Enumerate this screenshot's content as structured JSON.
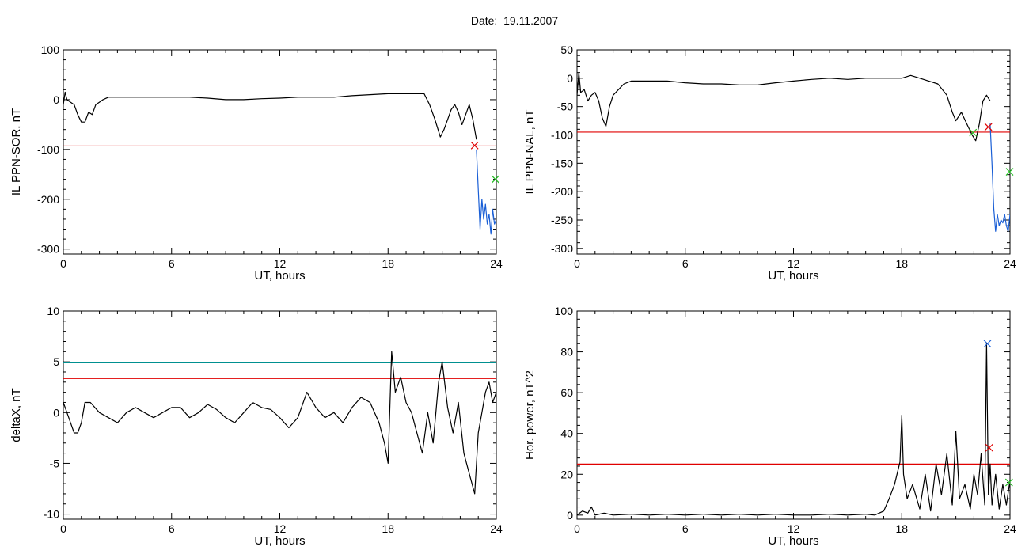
{
  "figure": {
    "title": "Date:  19.11.2007"
  },
  "colors": {
    "series": "#000000",
    "threshold": "#e00000",
    "threshold2": "#009090",
    "tail": "#1a5fd6",
    "marker_red": "#e00000",
    "marker_green": "#22bb22",
    "marker_blue": "#1a5fd6"
  },
  "chart_data": [
    {
      "type": "line",
      "ylabel": "IL PPN-SOR, nT",
      "xlabel": "UT, hours",
      "xlim": [
        0,
        24
      ],
      "ylim": [
        -310,
        100
      ],
      "xticks": [
        0,
        6,
        12,
        18,
        24
      ],
      "yticks": [
        100,
        0,
        -100,
        -200,
        -300
      ],
      "series": [
        {
          "color": "black",
          "x": [
            0,
            0.1,
            0.2,
            0.4,
            0.6,
            0.8,
            1.0,
            1.2,
            1.4,
            1.6,
            1.8,
            2.0,
            2.2,
            2.5,
            3,
            4,
            5,
            6,
            7,
            8,
            9,
            10,
            11,
            12,
            13,
            14,
            15,
            16,
            17,
            18,
            19,
            20,
            20.3,
            20.6,
            20.9,
            21.1,
            21.3,
            21.5,
            21.7,
            21.9,
            22.1,
            22.3,
            22.5,
            22.7,
            22.9
          ],
          "y": [
            -10,
            15,
            0,
            -5,
            -10,
            -30,
            -45,
            -45,
            -25,
            -30,
            -10,
            -5,
            0,
            5,
            5,
            5,
            5,
            5,
            5,
            3,
            0,
            0,
            2,
            3,
            5,
            5,
            5,
            8,
            10,
            12,
            12,
            12,
            -10,
            -40,
            -75,
            -60,
            -40,
            -20,
            -10,
            -25,
            -50,
            -30,
            -10,
            -40,
            -80
          ]
        },
        {
          "color": "blue",
          "x": [
            22.9,
            23.0,
            23.1,
            23.2,
            23.3,
            23.4,
            23.5,
            23.6,
            23.7,
            23.8,
            23.9,
            24.0
          ],
          "y": [
            -100,
            -180,
            -260,
            -200,
            -240,
            -210,
            -250,
            -230,
            -270,
            -220,
            -250,
            -240
          ]
        }
      ],
      "thresholds": [
        {
          "y": -93,
          "color": "red"
        }
      ],
      "markers": [
        {
          "x": 22.8,
          "y": -92,
          "color": "red"
        },
        {
          "x": 23.95,
          "y": -160,
          "color": "green"
        }
      ]
    },
    {
      "type": "line",
      "ylabel": "IL PPN-NAL, nT",
      "xlabel": "UT, hours",
      "xlim": [
        0,
        24
      ],
      "ylim": [
        -310,
        50
      ],
      "xticks": [
        0,
        6,
        12,
        18,
        24
      ],
      "yticks": [
        50,
        0,
        -50,
        -100,
        -150,
        -200,
        -250,
        -300
      ],
      "series": [
        {
          "color": "black",
          "x": [
            0,
            0.1,
            0.2,
            0.4,
            0.6,
            0.8,
            1.0,
            1.2,
            1.4,
            1.6,
            1.8,
            2.0,
            2.3,
            2.6,
            3,
            4,
            5,
            6,
            7,
            8,
            9,
            10,
            11,
            12,
            13,
            14,
            15,
            16,
            17,
            18,
            18.5,
            19,
            19.5,
            20,
            20.5,
            20.8,
            21.0,
            21.3,
            21.6,
            21.9,
            22.1,
            22.3,
            22.5,
            22.7,
            22.9
          ],
          "y": [
            -30,
            10,
            -25,
            -20,
            -40,
            -30,
            -25,
            -40,
            -70,
            -85,
            -50,
            -30,
            -20,
            -10,
            -5,
            -5,
            -5,
            -8,
            -10,
            -10,
            -12,
            -12,
            -8,
            -5,
            -2,
            0,
            -2,
            0,
            0,
            0,
            5,
            0,
            -5,
            -10,
            -30,
            -60,
            -75,
            -60,
            -80,
            -100,
            -110,
            -80,
            -40,
            -30,
            -40
          ]
        },
        {
          "color": "blue",
          "x": [
            22.9,
            23.0,
            23.1,
            23.2,
            23.3,
            23.4,
            23.5,
            23.6,
            23.7,
            23.8,
            23.9,
            24.0
          ],
          "y": [
            -80,
            -150,
            -230,
            -270,
            -240,
            -260,
            -250,
            -255,
            -240,
            -260,
            -270,
            -240
          ]
        }
      ],
      "thresholds": [
        {
          "y": -95,
          "color": "red"
        }
      ],
      "markers": [
        {
          "x": 21.95,
          "y": -96,
          "color": "green"
        },
        {
          "x": 22.8,
          "y": -86,
          "color": "red"
        },
        {
          "x": 23.98,
          "y": -165,
          "color": "green"
        }
      ]
    },
    {
      "type": "line",
      "ylabel": "deltaX, nT",
      "xlabel": "UT, hours",
      "xlim": [
        0,
        24
      ],
      "ylim": [
        -10.5,
        10
      ],
      "xticks": [
        0,
        6,
        12,
        18,
        24
      ],
      "yticks": [
        10,
        5,
        0,
        -5,
        -10
      ],
      "series": [
        {
          "color": "black",
          "x": [
            0,
            0.2,
            0.4,
            0.6,
            0.8,
            1.0,
            1.2,
            1.5,
            2.0,
            2.5,
            3.0,
            3.5,
            4.0,
            4.5,
            5.0,
            5.5,
            6.0,
            6.5,
            7.0,
            7.5,
            8.0,
            8.5,
            9.0,
            9.5,
            10.0,
            10.5,
            11.0,
            11.5,
            12.0,
            12.5,
            13.0,
            13.5,
            14.0,
            14.5,
            15.0,
            15.5,
            16.0,
            16.5,
            17.0,
            17.5,
            17.8,
            18.0,
            18.2,
            18.4,
            18.7,
            19.0,
            19.3,
            19.6,
            19.9,
            20.2,
            20.5,
            20.8,
            21.0,
            21.3,
            21.6,
            21.9,
            22.2,
            22.5,
            22.8,
            23.0,
            23.2,
            23.4,
            23.6,
            23.8,
            24.0
          ],
          "y": [
            1,
            0,
            -1,
            -2,
            -2,
            -1,
            1,
            1,
            0,
            -0.5,
            -1,
            0,
            0.5,
            0,
            -0.5,
            0,
            0.5,
            0.5,
            -0.5,
            0,
            0.8,
            0.3,
            -0.5,
            -1,
            0,
            1,
            0.5,
            0.3,
            -0.5,
            -1.5,
            -0.5,
            2,
            0.5,
            -0.5,
            0,
            -1,
            0.5,
            1.5,
            1,
            -1,
            -3,
            -5,
            6,
            2,
            3.5,
            1,
            0,
            -2,
            -4,
            0,
            -3,
            3,
            5,
            0.5,
            -2,
            1,
            -4,
            -6,
            -8,
            -2,
            0,
            2,
            3,
            1,
            2
          ]
        }
      ],
      "thresholds": [
        {
          "y": 4.9,
          "color": "teal"
        },
        {
          "y": 3.35,
          "color": "red"
        }
      ],
      "markers": []
    },
    {
      "type": "line",
      "ylabel": "Hor. power, nT^2",
      "xlabel": "UT, hours",
      "xlim": [
        0,
        24
      ],
      "ylim": [
        -2,
        100
      ],
      "xticks": [
        0,
        6,
        12,
        18,
        24
      ],
      "yticks": [
        100,
        80,
        60,
        40,
        20,
        0
      ],
      "series": [
        {
          "color": "black",
          "x": [
            0,
            0.3,
            0.6,
            0.8,
            1.0,
            1.5,
            2,
            3,
            4,
            5,
            6,
            7,
            8,
            9,
            10,
            11,
            12,
            13,
            14,
            15,
            16,
            16.5,
            17,
            17.3,
            17.6,
            17.9,
            18.0,
            18.1,
            18.3,
            18.6,
            19.0,
            19.3,
            19.6,
            19.9,
            20.2,
            20.5,
            20.8,
            21.0,
            21.2,
            21.5,
            21.8,
            22.0,
            22.2,
            22.4,
            22.6,
            22.7,
            22.8,
            22.9,
            23.0,
            23.2,
            23.4,
            23.6,
            23.8,
            24.0
          ],
          "y": [
            0,
            2,
            1,
            4,
            0,
            1,
            0,
            0.5,
            0,
            0.5,
            0,
            0.5,
            0,
            0.5,
            0,
            0.5,
            0,
            0,
            0.5,
            0,
            0.5,
            0,
            2,
            8,
            15,
            26,
            49,
            20,
            8,
            15,
            3,
            20,
            2,
            25,
            10,
            30,
            5,
            41,
            8,
            15,
            3,
            20,
            10,
            30,
            5,
            84,
            10,
            25,
            5,
            20,
            3,
            15,
            5,
            17
          ]
        }
      ],
      "thresholds": [
        {
          "y": 25,
          "color": "red"
        }
      ],
      "markers": [
        {
          "x": 22.75,
          "y": 84,
          "color": "blue"
        },
        {
          "x": 22.85,
          "y": 33,
          "color": "red"
        },
        {
          "x": 23.95,
          "y": 16,
          "color": "green"
        }
      ]
    }
  ]
}
